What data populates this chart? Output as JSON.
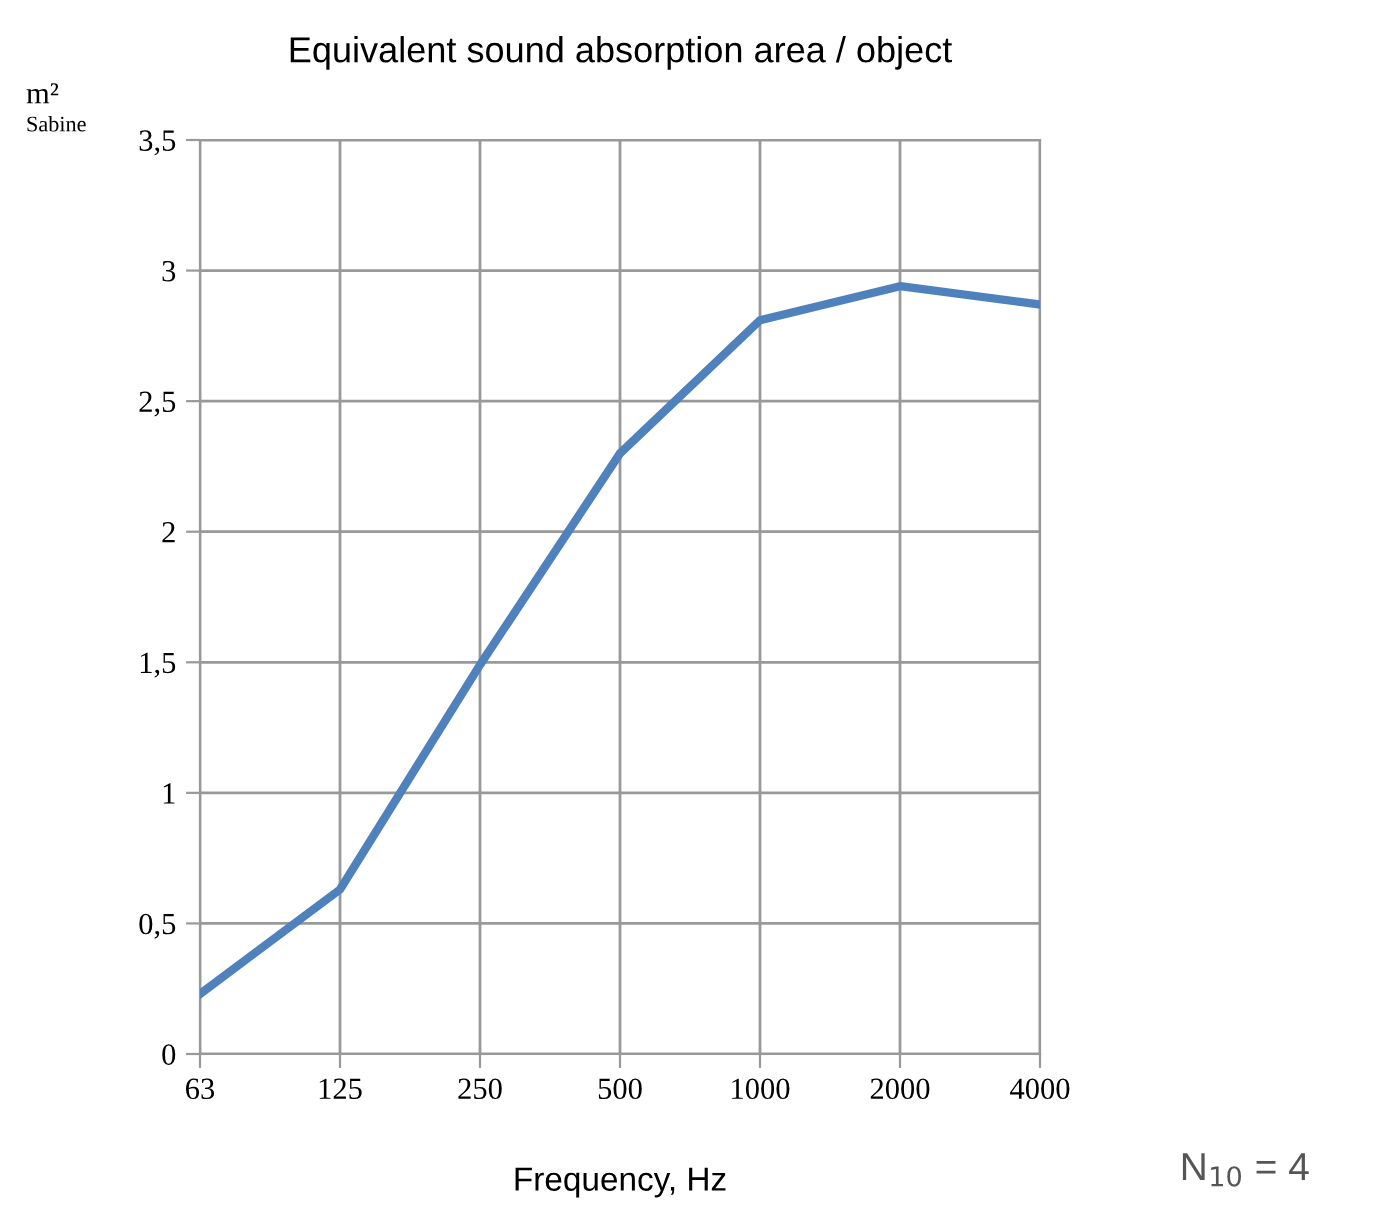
{
  "chart_data": {
    "type": "line",
    "title": "Equivalent sound absorption area / object",
    "xlabel": "Frequency, Hz",
    "ylabel": "m²\nSabine",
    "categories": [
      "63",
      "125",
      "250",
      "500",
      "1000",
      "2000",
      "4000"
    ],
    "series": [
      {
        "color": "#4f81bd",
        "values": [
          0.23,
          0.63,
          1.49,
          2.3,
          2.81,
          2.94,
          2.87
        ]
      }
    ],
    "ylim": [
      0,
      3.5
    ],
    "yticks": [
      {
        "value": 0,
        "label": "0"
      },
      {
        "value": 0.5,
        "label": "0,5"
      },
      {
        "value": 1,
        "label": "1"
      },
      {
        "value": 1.5,
        "label": "1,5"
      },
      {
        "value": 2,
        "label": "2"
      },
      {
        "value": 2.5,
        "label": "2,5"
      },
      {
        "value": 3,
        "label": "3"
      },
      {
        "value": 3.5,
        "label": "3,5"
      }
    ],
    "grid": true,
    "legend": false,
    "marker": "none",
    "line_style": "solid",
    "annotations": [
      "N$_{10}$ = 4"
    ]
  }
}
